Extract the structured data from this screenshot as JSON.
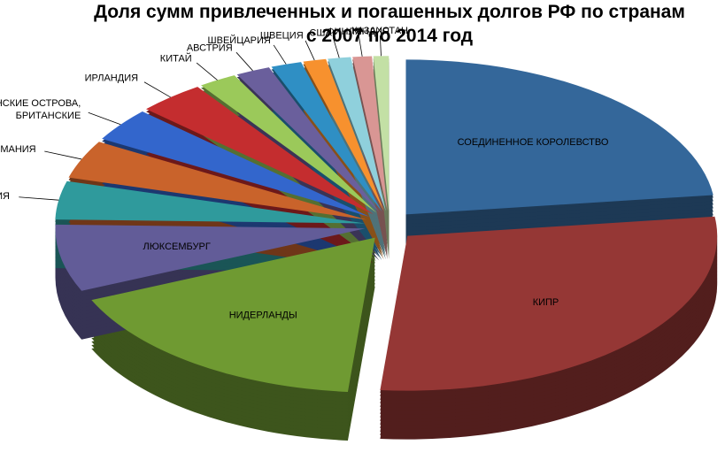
{
  "chart_data": {
    "type": "pie3d",
    "title": [
      "Доля сумм привлеченных и погашенных долгов РФ по странам",
      "с 2007 по 2014 год"
    ],
    "categories": [
      "СОЕДИНЕННОЕ КОРОЛЕВСТВО",
      "КИПР",
      "НИДЕРЛАНДЫ",
      "ЛЮКСЕМБУРГ",
      "ФРАНЦИЯ",
      "ГЕРМАНИЯ",
      "ВИРГИНСКИЕ ОСТРОВА, БРИТАНСКИЕ",
      "ИРЛАНДИЯ",
      "КИТАЙ",
      "АВСТРИЯ",
      "ШВЕЙЦАРИЯ",
      "ШВЕЦИЯ",
      "США",
      "ФИНЛЯНДИЯ",
      "КАЗАХСТАН"
    ],
    "values": [
      23,
      28.4,
      17,
      7,
      4,
      4,
      3.5,
      3.5,
      2,
      1.8,
      1.6,
      1.2,
      1.2,
      1,
      0.8
    ],
    "colors": [
      "#34679a",
      "#953735",
      "#6f9a32",
      "#625c98",
      "#2f9a9c",
      "#c9632b",
      "#3366cc",
      "#c42d2f",
      "#9bc95a",
      "#6a5f9c",
      "#2f8fc4",
      "#f7912e",
      "#8fd0dc",
      "#d99694",
      "#c3e0a5"
    ]
  }
}
